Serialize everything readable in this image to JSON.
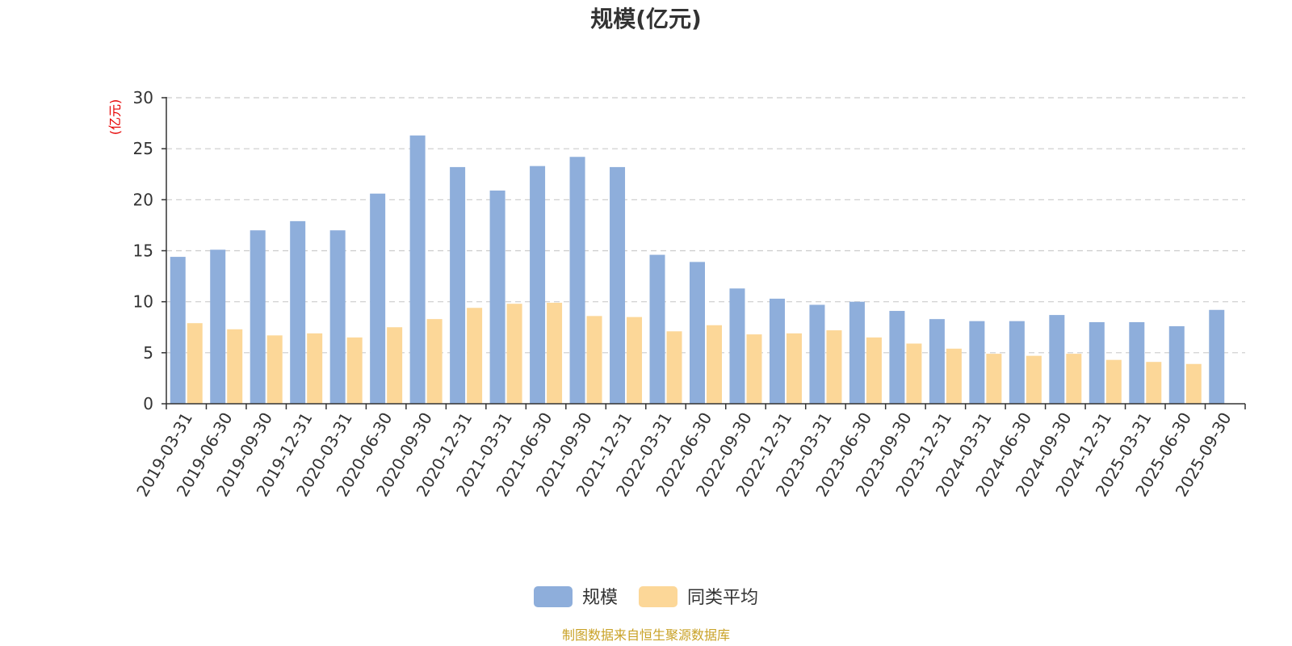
{
  "chart_data": {
    "type": "bar",
    "title": "规模(亿元)",
    "ylabel": "(亿元)",
    "xlabel": "",
    "ylim": [
      0,
      30
    ],
    "yticks": [
      0,
      5,
      10,
      15,
      20,
      25,
      30
    ],
    "grid": true,
    "legend_position": "bottom-center",
    "categories": [
      "2019-03-31",
      "2019-06-30",
      "2019-09-30",
      "2019-12-31",
      "2020-03-31",
      "2020-06-30",
      "2020-09-30",
      "2020-12-31",
      "2021-03-31",
      "2021-06-30",
      "2021-09-30",
      "2021-12-31",
      "2022-03-31",
      "2022-06-30",
      "2022-09-30",
      "2022-12-31",
      "2023-03-31",
      "2023-06-30",
      "2023-09-30",
      "2023-12-31",
      "2024-03-31",
      "2024-06-30",
      "2024-09-30",
      "2024-12-31",
      "2025-03-31",
      "2025-06-30",
      "2025-09-30"
    ],
    "series": [
      {
        "name": "规模",
        "color": "#8eaedb",
        "values": [
          14.4,
          15.1,
          17.0,
          17.9,
          17.0,
          20.6,
          26.3,
          23.2,
          20.9,
          23.3,
          24.2,
          23.2,
          14.6,
          13.9,
          11.3,
          10.3,
          9.7,
          10.0,
          9.1,
          8.3,
          8.1,
          8.1,
          8.7,
          8.0,
          8.0,
          7.6,
          9.2
        ]
      },
      {
        "name": "同类平均",
        "color": "#fcd798",
        "values": [
          7.9,
          7.3,
          6.7,
          6.9,
          6.5,
          7.5,
          8.3,
          9.4,
          9.8,
          9.9,
          8.6,
          8.5,
          7.1,
          7.7,
          6.8,
          6.9,
          7.2,
          6.5,
          5.9,
          5.4,
          4.9,
          4.7,
          4.9,
          4.3,
          4.1,
          3.9,
          null
        ]
      }
    ]
  },
  "footer": {
    "source_text": "制图数据来自恒生聚源数据库",
    "source_color": "#c9a227"
  },
  "colors": {
    "ylabel": "#e60000",
    "text": "#333333",
    "grid": "#cccccc"
  }
}
